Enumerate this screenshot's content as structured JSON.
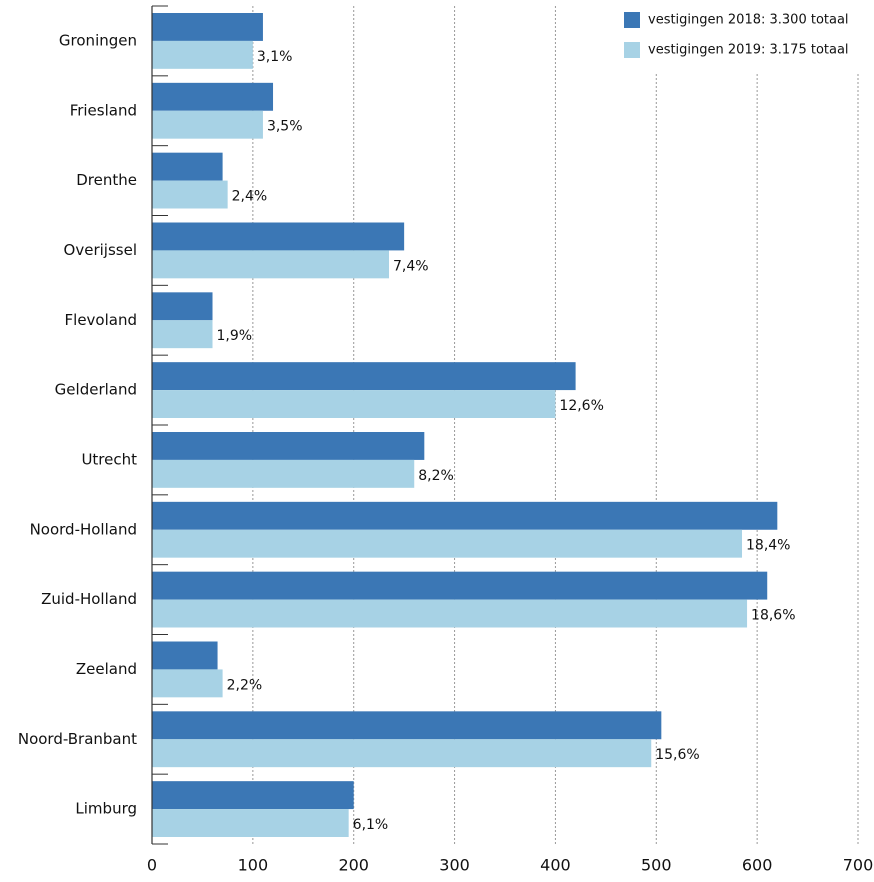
{
  "chart_data": {
    "type": "hbar",
    "categories": [
      "Groningen",
      "Friesland",
      "Drenthe",
      "Overijssel",
      "Flevoland",
      "Gelderland",
      "Utrecht",
      "Noord-Holland",
      "Zuid-Holland",
      "Zeeland",
      "Noord-Branbant",
      "Limburg"
    ],
    "series": [
      {
        "name": "vestigingen 2018: 3.300 totaal",
        "color": "#3b77b5",
        "values": [
          110,
          120,
          70,
          250,
          60,
          420,
          270,
          620,
          610,
          65,
          505,
          200
        ]
      },
      {
        "name": "vestigingen 2019: 3.175 totaal",
        "color": "#a7d2e5",
        "values": [
          100,
          110,
          75,
          235,
          60,
          400,
          260,
          585,
          590,
          70,
          495,
          195
        ],
        "data_labels": [
          "3,1%",
          "3,5%",
          "2,4%",
          "7,4%",
          "1,9%",
          "12,6%",
          "8,2%",
          "18,4%",
          "18,6%",
          "2,2%",
          "15,6%",
          "6,1%"
        ]
      }
    ],
    "xlim": [
      0,
      700
    ],
    "xticks": [
      0,
      100,
      200,
      300,
      400,
      500,
      600,
      700
    ],
    "grid": true,
    "legend": "top-right"
  }
}
